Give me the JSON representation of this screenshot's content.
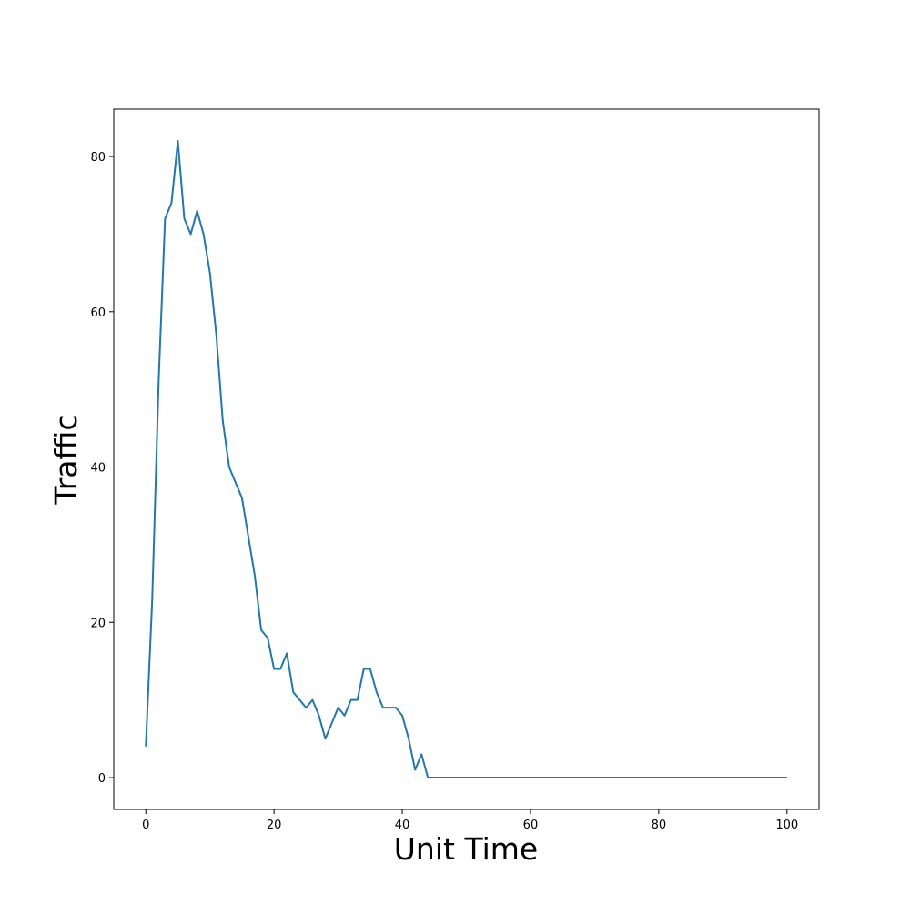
{
  "chart_data": {
    "type": "line",
    "title": "",
    "xlabel": "Unit Time",
    "ylabel": "Traffic",
    "xlim": [
      -5,
      105
    ],
    "ylim": [
      -4.1,
      86.1
    ],
    "xticks": [
      0,
      20,
      40,
      60,
      80,
      100
    ],
    "yticks": [
      0,
      20,
      40,
      60,
      80
    ],
    "grid": false,
    "legend": "none",
    "series": [
      {
        "color": "#1f77b4",
        "x": [
          0,
          1,
          2,
          3,
          4,
          5,
          6,
          7,
          8,
          9,
          10,
          11,
          12,
          13,
          14,
          15,
          16,
          17,
          18,
          19,
          20,
          21,
          22,
          23,
          24,
          25,
          26,
          27,
          28,
          29,
          30,
          31,
          32,
          33,
          34,
          35,
          36,
          37,
          38,
          39,
          40,
          41,
          42,
          43,
          44,
          45,
          46,
          47,
          48,
          49,
          50,
          51,
          52,
          53,
          54,
          55,
          56,
          57,
          58,
          59,
          60,
          61,
          62,
          63,
          64,
          65,
          66,
          67,
          68,
          69,
          70,
          71,
          72,
          73,
          74,
          75,
          76,
          77,
          78,
          79,
          80,
          81,
          82,
          83,
          84,
          85,
          86,
          87,
          88,
          89,
          90,
          91,
          92,
          93,
          94,
          95,
          96,
          97,
          98,
          99,
          100
        ],
        "values": [
          4,
          23,
          51,
          72,
          74,
          82,
          72,
          70,
          73,
          70,
          65,
          57,
          46,
          40,
          38,
          36,
          31,
          26,
          19,
          18,
          14,
          14,
          16,
          11,
          10,
          9,
          10,
          8,
          5,
          7,
          9,
          8,
          10,
          10,
          14,
          14,
          11,
          9,
          9,
          9,
          8,
          5,
          1,
          3,
          0,
          0,
          0,
          0,
          0,
          0,
          0,
          0,
          0,
          0,
          0,
          0,
          0,
          0,
          0,
          0,
          0,
          0,
          0,
          0,
          0,
          0,
          0,
          0,
          0,
          0,
          0,
          0,
          0,
          0,
          0,
          0,
          0,
          0,
          0,
          0,
          0,
          0,
          0,
          0,
          0,
          0,
          0,
          0,
          0,
          0,
          0,
          0,
          0,
          0,
          0,
          0,
          0,
          0,
          0,
          0,
          0
        ]
      }
    ]
  }
}
